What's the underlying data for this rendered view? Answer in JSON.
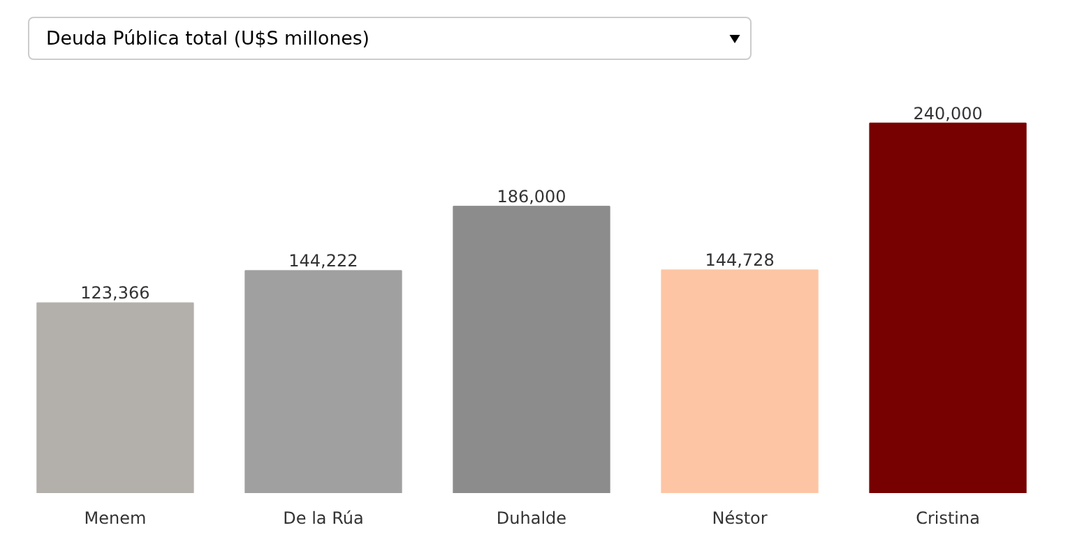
{
  "chart_data": {
    "type": "bar",
    "title": "Deuda Pública total (U$S millones)",
    "categories": [
      "Menem",
      "De la Rúa",
      "Duhalde",
      "Néstor",
      "Cristina"
    ],
    "values": [
      123366,
      144222,
      186000,
      144728,
      240000
    ],
    "colors": [
      "#b3afab",
      "#a0a0a0",
      "#8c8c8c",
      "#fdc5a4",
      "#770000"
    ],
    "value_labels": [
      "123,366",
      "144,222",
      "186,000",
      "144,728",
      "240,000"
    ]
  }
}
